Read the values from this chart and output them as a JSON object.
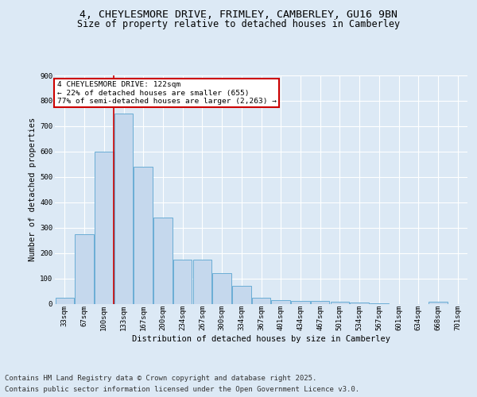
{
  "title_line1": "4, CHEYLESMORE DRIVE, FRIMLEY, CAMBERLEY, GU16 9BN",
  "title_line2": "Size of property relative to detached houses in Camberley",
  "xlabel": "Distribution of detached houses by size in Camberley",
  "ylabel": "Number of detached properties",
  "categories": [
    "33sqm",
    "67sqm",
    "100sqm",
    "133sqm",
    "167sqm",
    "200sqm",
    "234sqm",
    "267sqm",
    "300sqm",
    "334sqm",
    "367sqm",
    "401sqm",
    "434sqm",
    "467sqm",
    "501sqm",
    "534sqm",
    "567sqm",
    "601sqm",
    "634sqm",
    "668sqm",
    "701sqm"
  ],
  "values": [
    25,
    275,
    600,
    750,
    540,
    340,
    175,
    175,
    120,
    70,
    25,
    15,
    10,
    12,
    8,
    5,
    2,
    0,
    0,
    7,
    0
  ],
  "bar_color": "#c5d8ed",
  "bar_edge_color": "#6aadd5",
  "vline_color": "#cc0000",
  "annotation_title": "4 CHEYLESMORE DRIVE: 122sqm",
  "annotation_line2": "← 22% of detached houses are smaller (655)",
  "annotation_line3": "77% of semi-detached houses are larger (2,263) →",
  "annotation_box_color": "#cc0000",
  "annotation_fill": "#ffffff",
  "ylim": [
    0,
    900
  ],
  "yticks": [
    0,
    100,
    200,
    300,
    400,
    500,
    600,
    700,
    800,
    900
  ],
  "background_color": "#dce9f5",
  "plot_bg_color": "#dce9f5",
  "grid_color": "#ffffff",
  "footer_line1": "Contains HM Land Registry data © Crown copyright and database right 2025.",
  "footer_line2": "Contains public sector information licensed under the Open Government Licence v3.0.",
  "title_fontsize": 9.5,
  "subtitle_fontsize": 8.5,
  "tick_fontsize": 6.5,
  "label_fontsize": 7.5,
  "footer_fontsize": 6.5,
  "annotation_fontsize": 6.8
}
